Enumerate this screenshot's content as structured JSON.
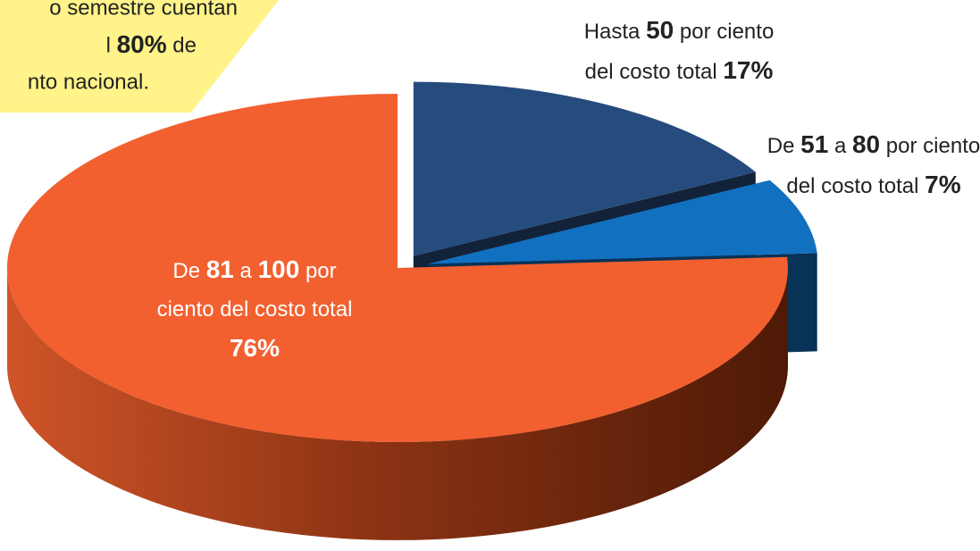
{
  "chart_data": {
    "type": "pie3d",
    "annotation": [
      "o semestre cuentan",
      "l 80% de",
      "nto nacional."
    ],
    "categories": [
      "Hasta 50 por ciento del costo total",
      "De 51 a 80 por ciento del costo total",
      "De 81 a 100 por ciento del costo total"
    ],
    "values": [
      17,
      7,
      76
    ],
    "value_labels": [
      "17%",
      "7%",
      "76%"
    ],
    "colors": [
      "#264c7e",
      "#1270c0",
      "#f26030"
    ],
    "start_angle": 0,
    "direction": "clockwise"
  }
}
